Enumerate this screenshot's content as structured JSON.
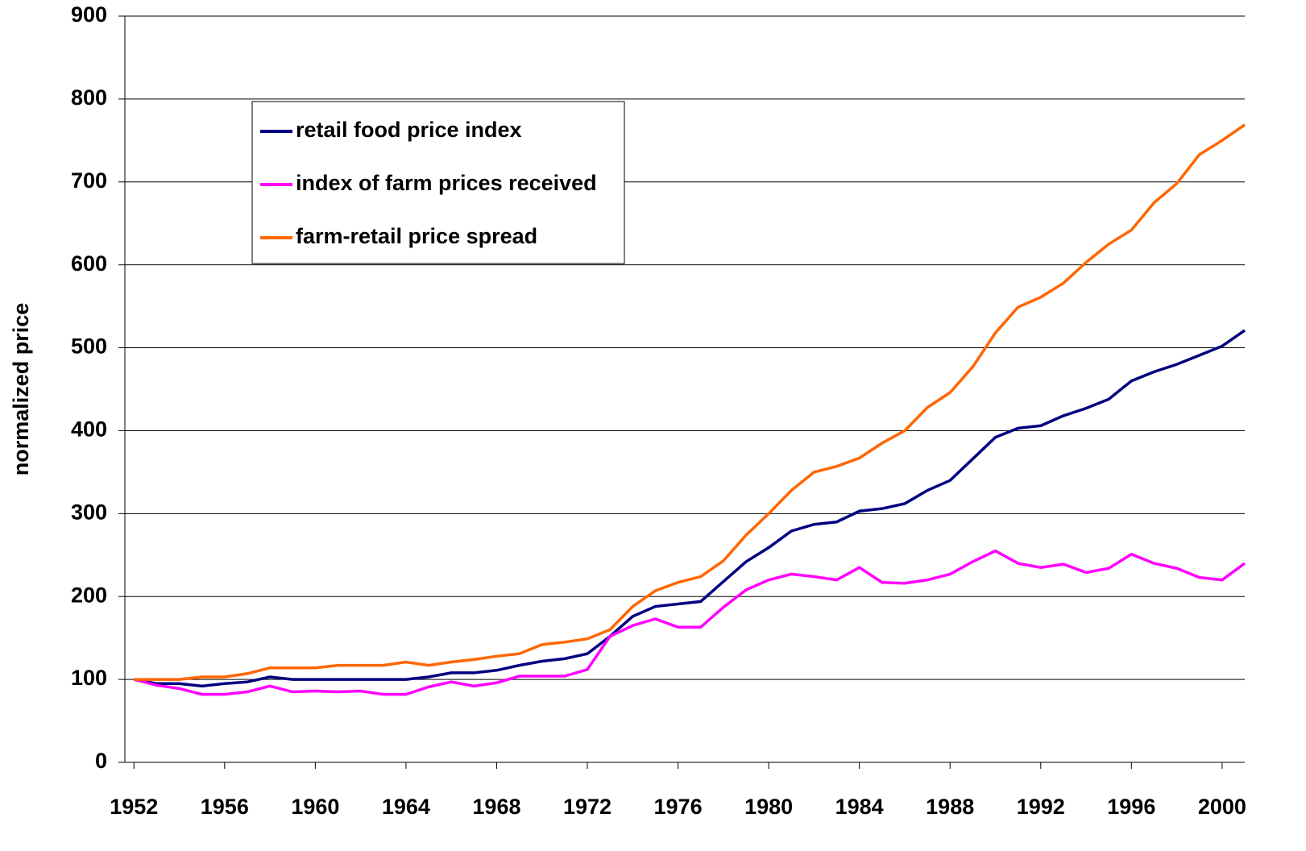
{
  "chart_data": {
    "type": "line",
    "ylabel": "normalized price",
    "x": [
      1952,
      1953,
      1954,
      1955,
      1956,
      1957,
      1958,
      1959,
      1960,
      1961,
      1962,
      1963,
      1964,
      1965,
      1966,
      1967,
      1968,
      1969,
      1970,
      1971,
      1972,
      1973,
      1974,
      1975,
      1976,
      1977,
      1978,
      1979,
      1980,
      1981,
      1982,
      1983,
      1984,
      1985,
      1986,
      1987,
      1988,
      1989,
      1990,
      1991,
      1992,
      1993,
      1994,
      1995,
      1996,
      1997,
      1998,
      1999,
      2000,
      2001
    ],
    "xlim": [
      1951.6,
      2001
    ],
    "xticks": [
      1952,
      1956,
      1960,
      1964,
      1968,
      1972,
      1976,
      1980,
      1984,
      1988,
      1992,
      1996,
      2000
    ],
    "ylim": [
      0,
      900
    ],
    "yticks": [
      0,
      100,
      200,
      300,
      400,
      500,
      600,
      700,
      800,
      900
    ],
    "grid": true,
    "legend": "upper-left",
    "series": [
      {
        "name": "retail food price index",
        "color": "#000080",
        "values": [
          100,
          95,
          95,
          92,
          95,
          97,
          103,
          100,
          100,
          100,
          100,
          100,
          100,
          103,
          108,
          108,
          111,
          117,
          122,
          125,
          131,
          152,
          176,
          188,
          191,
          194,
          218,
          242,
          259,
          279,
          287,
          290,
          303,
          306,
          312,
          328,
          340,
          366,
          392,
          403,
          406,
          418,
          427,
          438,
          460,
          471,
          480,
          491,
          502,
          521
        ]
      },
      {
        "name": "index of farm prices received",
        "color": "#ff00ff",
        "values": [
          100,
          93,
          89,
          82,
          82,
          85,
          92,
          85,
          86,
          85,
          86,
          82,
          82,
          91,
          97,
          92,
          96,
          104,
          104,
          104,
          112,
          152,
          165,
          173,
          163,
          163,
          187,
          208,
          220,
          227,
          224,
          220,
          235,
          217,
          216,
          220,
          227,
          242,
          255,
          240,
          235,
          239,
          229,
          234,
          251,
          240,
          234,
          223,
          220,
          240
        ]
      },
      {
        "name": "farm-retail price spread",
        "color": "#ff6600",
        "values": [
          100,
          100,
          100,
          103,
          103,
          107,
          114,
          114,
          114,
          117,
          117,
          117,
          121,
          117,
          121,
          124,
          128,
          131,
          142,
          145,
          149,
          160,
          188,
          207,
          217,
          224,
          243,
          274,
          300,
          328,
          350,
          357,
          367,
          385,
          400,
          428,
          446,
          477,
          518,
          549,
          561,
          578,
          603,
          625,
          642,
          675,
          698,
          733,
          750,
          769
        ]
      }
    ]
  }
}
